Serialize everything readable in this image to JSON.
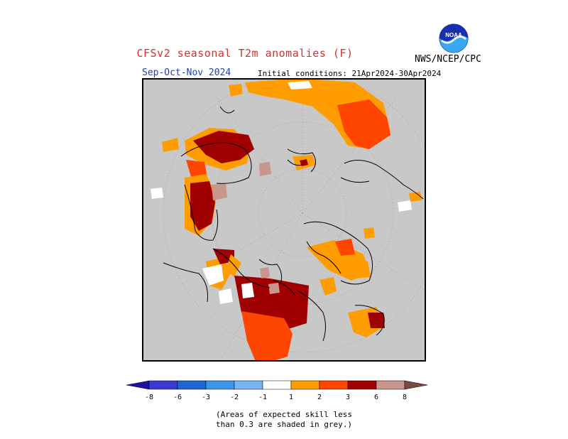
{
  "header": {
    "title": "CFSv2 seasonal T2m anomalies (F)",
    "agency": "NWS/NCEP/CPC",
    "season": "Sep-Oct-Nov 2024",
    "initial_conditions": "Initial conditions: 21Apr2024-30Apr2024",
    "logo_text": "NOAA"
  },
  "colorbar": {
    "labels": [
      "-8",
      "-6",
      "-3",
      "-2",
      "-1",
      "1",
      "2",
      "3",
      "6",
      "8"
    ],
    "colors": [
      "#2010a0",
      "#3a3ad0",
      "#1e64d2",
      "#3c96e6",
      "#78b4f0",
      "#ffffff",
      "#ff9c00",
      "#ff4600",
      "#a00000",
      "#c8968c",
      "#7a4a40"
    ]
  },
  "map_colors": {
    "background": "#c8c8c8",
    "low_skill_grey": "#c8c8c8",
    "plus_1_2": "#ff9c00",
    "plus_2_3": "#ff4600",
    "plus_3_6": "#a00000",
    "plus_6_8": "#c8968c",
    "near_normal": "#ffffff"
  },
  "note": {
    "line1": "(Areas of expected skill less",
    "line2": "than 0.3 are shaded in grey.)"
  }
}
